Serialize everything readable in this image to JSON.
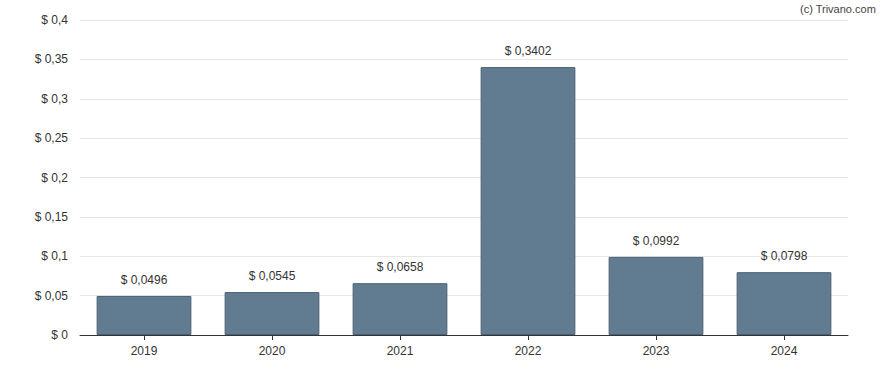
{
  "chart_data": {
    "type": "bar",
    "annotation": "(c) Trivano.com",
    "categories": [
      "2019",
      "2020",
      "2021",
      "2022",
      "2023",
      "2024"
    ],
    "values": [
      0.0496,
      0.0545,
      0.0658,
      0.3402,
      0.0992,
      0.0798
    ],
    "value_labels": [
      "$ 0,0496",
      "$ 0,0545",
      "$ 0,0658",
      "$ 0,3402",
      "$ 0,0992",
      "$ 0,0798"
    ],
    "data_labels": true,
    "color": "#617c90",
    "ylim": [
      0,
      0.4
    ],
    "yticks": [
      {
        "value": 0,
        "label": "$ 0"
      },
      {
        "value": 0.05,
        "label": "$ 0,05"
      },
      {
        "value": 0.1,
        "label": "$ 0,1"
      },
      {
        "value": 0.15,
        "label": "$ 0,15"
      },
      {
        "value": 0.2,
        "label": "$ 0,2"
      },
      {
        "value": 0.25,
        "label": "$ 0,25"
      },
      {
        "value": 0.3,
        "label": "$ 0,3"
      },
      {
        "value": 0.35,
        "label": "$ 0,35"
      },
      {
        "value": 0.4,
        "label": "$ 0,4"
      }
    ],
    "grid": true
  }
}
